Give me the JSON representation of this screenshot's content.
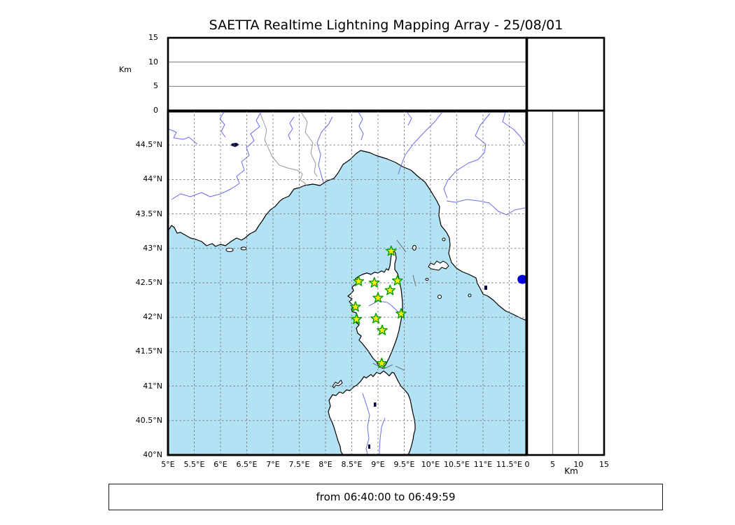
{
  "title": "SAETTA Realtime Lightning Mapping Array - 25/08/01",
  "footer": {
    "time_range": "from 06:40:00 to 06:49:59"
  },
  "altitude_panel": {
    "axis_title": "Km",
    "tick_labels": [
      "0",
      "5",
      "10",
      "15"
    ],
    "range_km": [
      0,
      15
    ],
    "reference_lines_km": [
      5,
      10
    ]
  },
  "right_panel": {
    "axis_title": "Km",
    "tick_labels": [
      "0",
      "5",
      "10",
      "15"
    ],
    "range_km": [
      0,
      15
    ],
    "reference_lines_km": [
      5,
      10
    ]
  },
  "map": {
    "lon_tick_labels": [
      "5°E",
      "5.5°E",
      "6°E",
      "6.5°E",
      "7°E",
      "7.5°E",
      "8°E",
      "8.5°E",
      "9°E",
      "9.5°E",
      "10°E",
      "10.5°E",
      "11°E",
      "11.5°E"
    ],
    "lat_tick_labels": [
      "44.5°N",
      "44°N",
      "43.5°N",
      "43°N",
      "42.5°N",
      "42°N",
      "41.5°N",
      "41°N",
      "40.5°N",
      "40°N"
    ],
    "lon_range_deg_e": [
      5,
      11.83
    ],
    "lat_range_deg_n": [
      40,
      45
    ],
    "stations": [
      {
        "lon_e": 9.25,
        "lat_n": 42.96
      },
      {
        "lon_e": 8.63,
        "lat_n": 42.52
      },
      {
        "lon_e": 8.93,
        "lat_n": 42.5
      },
      {
        "lon_e": 9.37,
        "lat_n": 42.53
      },
      {
        "lon_e": 9.23,
        "lat_n": 42.39
      },
      {
        "lon_e": 9.0,
        "lat_n": 42.28
      },
      {
        "lon_e": 8.57,
        "lat_n": 42.15
      },
      {
        "lon_e": 9.44,
        "lat_n": 42.05
      },
      {
        "lon_e": 8.59,
        "lat_n": 41.97
      },
      {
        "lon_e": 8.96,
        "lat_n": 41.98
      },
      {
        "lon_e": 9.08,
        "lat_n": 41.81
      },
      {
        "lon_e": 9.07,
        "lat_n": 41.33
      }
    ],
    "event_dot": {
      "lon_e": 11.75,
      "lat_n": 42.55,
      "altitude_km": 0
    }
  },
  "colors": {
    "sea": "#b3e2f4",
    "land": "#ffffff",
    "coast": "#000000",
    "river": "#6b6bee",
    "country_border": "#999999",
    "grid": "#777777",
    "panel_line": "#666666",
    "station_fill": "#ffee00",
    "station_stroke": "#00a000",
    "event": "#0000dd"
  }
}
